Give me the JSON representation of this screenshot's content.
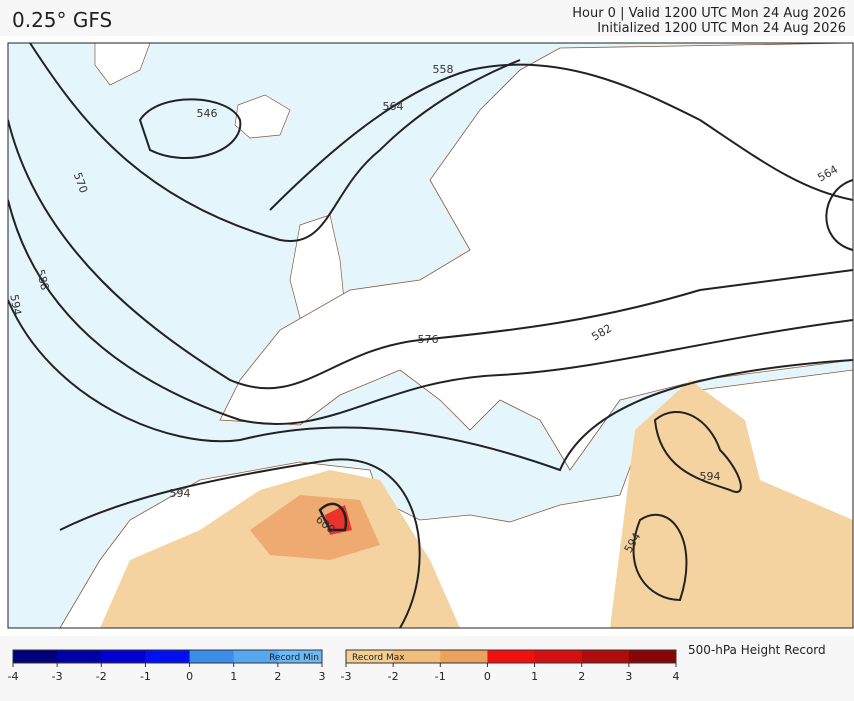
{
  "header": {
    "title": "0.25° GFS",
    "valid": "Hour 0 | Valid 1200 UTC Mon 24 Aug 2026",
    "initialized": "Initialized 1200 UTC Mon 24 Aug 2026"
  },
  "contour_labels": [
    "546",
    "558",
    "564",
    "570",
    "588",
    "594",
    "576",
    "582",
    "564",
    "594",
    "600",
    "594",
    "594"
  ],
  "colorbar": {
    "min_label": "Record Min",
    "max_label": "Record Max",
    "title": "500-hPa Height Record",
    "min_ticks": [
      -4,
      -3,
      -2,
      -1,
      0,
      1,
      2,
      3
    ],
    "max_ticks": [
      -3,
      -2,
      -1,
      0,
      1,
      2,
      3,
      4
    ]
  }
}
